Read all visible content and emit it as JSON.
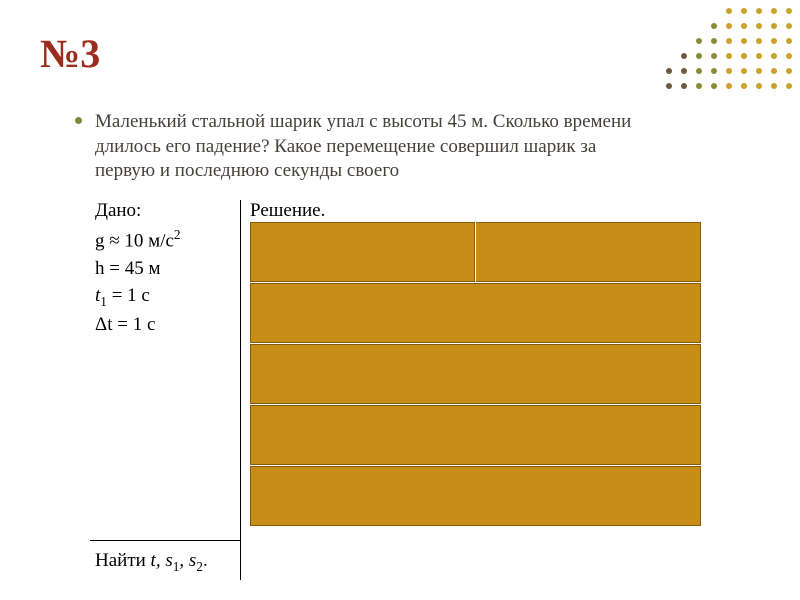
{
  "title": {
    "text": "№3",
    "color": "#9b2d1f",
    "fontsize": 40
  },
  "bullet_color": "#7a8a3a",
  "problem": {
    "text": "Маленький стальной шарик упал с высоты 45 м. Сколько времени длилось его падение? Какое перемещение совершил шарик за первую и последнюю секунды своего",
    "color": "#44403c",
    "fontsize": 19
  },
  "given": {
    "label": "Дано:",
    "lines": {
      "g": "g ≈ 10 м/с",
      "g_exp": "2",
      "h": "h = 45 м",
      "t1_base": "t",
      "t1_sub": "1",
      "t1_rest": " = 1 с",
      "dt": "Δt = 1 с"
    }
  },
  "solution": {
    "label": "Решение."
  },
  "find": {
    "label": "Найти ",
    "t": "t, ",
    "s1_base": "s",
    "s1_sub": "1",
    "s1_after": ", ",
    "s2_base": "s",
    "s2_sub": "2",
    "s2_after": "."
  },
  "hidden_fill": "#c68e17",
  "hidden_border": "#855a0f",
  "dots": {
    "colors": {
      "dark": "#6b5a3d",
      "olive": "#8a8a3a",
      "gold": "#c9a227"
    },
    "layout": [
      {
        "r": 0,
        "c": 4,
        "k": "gold"
      },
      {
        "r": 0,
        "c": 5,
        "k": "gold"
      },
      {
        "r": 0,
        "c": 6,
        "k": "gold"
      },
      {
        "r": 0,
        "c": 7,
        "k": "gold"
      },
      {
        "r": 0,
        "c": 8,
        "k": "gold"
      },
      {
        "r": 1,
        "c": 3,
        "k": "olive"
      },
      {
        "r": 1,
        "c": 4,
        "k": "gold"
      },
      {
        "r": 1,
        "c": 5,
        "k": "gold"
      },
      {
        "r": 1,
        "c": 6,
        "k": "gold"
      },
      {
        "r": 1,
        "c": 7,
        "k": "gold"
      },
      {
        "r": 1,
        "c": 8,
        "k": "gold"
      },
      {
        "r": 2,
        "c": 2,
        "k": "olive"
      },
      {
        "r": 2,
        "c": 3,
        "k": "olive"
      },
      {
        "r": 2,
        "c": 4,
        "k": "gold"
      },
      {
        "r": 2,
        "c": 5,
        "k": "gold"
      },
      {
        "r": 2,
        "c": 6,
        "k": "gold"
      },
      {
        "r": 2,
        "c": 7,
        "k": "gold"
      },
      {
        "r": 2,
        "c": 8,
        "k": "gold"
      },
      {
        "r": 3,
        "c": 1,
        "k": "dark"
      },
      {
        "r": 3,
        "c": 2,
        "k": "olive"
      },
      {
        "r": 3,
        "c": 3,
        "k": "olive"
      },
      {
        "r": 3,
        "c": 4,
        "k": "gold"
      },
      {
        "r": 3,
        "c": 5,
        "k": "gold"
      },
      {
        "r": 3,
        "c": 6,
        "k": "gold"
      },
      {
        "r": 3,
        "c": 7,
        "k": "gold"
      },
      {
        "r": 3,
        "c": 8,
        "k": "gold"
      },
      {
        "r": 4,
        "c": 0,
        "k": "dark"
      },
      {
        "r": 4,
        "c": 1,
        "k": "dark"
      },
      {
        "r": 4,
        "c": 2,
        "k": "olive"
      },
      {
        "r": 4,
        "c": 3,
        "k": "olive"
      },
      {
        "r": 4,
        "c": 4,
        "k": "gold"
      },
      {
        "r": 4,
        "c": 5,
        "k": "gold"
      },
      {
        "r": 4,
        "c": 6,
        "k": "gold"
      },
      {
        "r": 4,
        "c": 7,
        "k": "gold"
      },
      {
        "r": 4,
        "c": 8,
        "k": "gold"
      },
      {
        "r": 5,
        "c": 0,
        "k": "dark"
      },
      {
        "r": 5,
        "c": 1,
        "k": "dark"
      },
      {
        "r": 5,
        "c": 2,
        "k": "olive"
      },
      {
        "r": 5,
        "c": 3,
        "k": "olive"
      },
      {
        "r": 5,
        "c": 4,
        "k": "gold"
      },
      {
        "r": 5,
        "c": 5,
        "k": "gold"
      },
      {
        "r": 5,
        "c": 6,
        "k": "gold"
      },
      {
        "r": 5,
        "c": 7,
        "k": "gold"
      },
      {
        "r": 5,
        "c": 8,
        "k": "gold"
      }
    ],
    "spacing": 15
  }
}
